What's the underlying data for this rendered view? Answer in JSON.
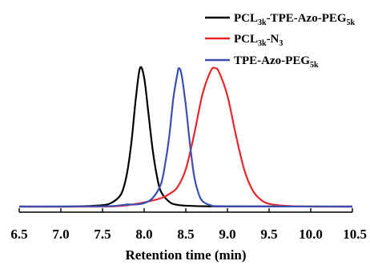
{
  "chart_data": {
    "type": "line",
    "title": "",
    "xlabel": "Retention time (min)",
    "ylabel": "",
    "xlim": [
      6.5,
      10.5
    ],
    "ylim": [
      0,
      1.1
    ],
    "x_ticks": [
      "6.5",
      "7.0",
      "7.5",
      "8.0",
      "8.5",
      "9.0",
      "9.5",
      "10.0",
      "10.5"
    ],
    "y_axis_visible": false,
    "grid": false,
    "legend_position": "top-right",
    "series": [
      {
        "name_parts": [
          {
            "text": "PCL",
            "sub": false
          },
          {
            "text": "3k",
            "sub": true
          },
          {
            "text": "-TPE-Azo-PEG",
            "sub": false
          },
          {
            "text": "5k",
            "sub": true
          }
        ],
        "color": "#000000",
        "points": [
          [
            6.5,
            0.0
          ],
          [
            7.0,
            0.0
          ],
          [
            7.3,
            0.003
          ],
          [
            7.5,
            0.01
          ],
          [
            7.6,
            0.025
          ],
          [
            7.7,
            0.07
          ],
          [
            7.75,
            0.13
          ],
          [
            7.8,
            0.26
          ],
          [
            7.85,
            0.48
          ],
          [
            7.9,
            0.78
          ],
          [
            7.95,
            1.0
          ],
          [
            8.0,
            0.93
          ],
          [
            8.05,
            0.68
          ],
          [
            8.1,
            0.42
          ],
          [
            8.15,
            0.23
          ],
          [
            8.2,
            0.11
          ],
          [
            8.3,
            0.035
          ],
          [
            8.4,
            0.012
          ],
          [
            8.6,
            0.004
          ],
          [
            9.0,
            0.001
          ],
          [
            10.5,
            0.0
          ]
        ]
      },
      {
        "name_parts": [
          {
            "text": "PCL",
            "sub": false
          },
          {
            "text": "3k",
            "sub": true
          },
          {
            "text": "-N",
            "sub": false
          },
          {
            "text": "3",
            "sub": true
          }
        ],
        "color": "#e8262a",
        "points": [
          [
            6.5,
            0.0
          ],
          [
            7.5,
            0.0
          ],
          [
            7.8,
            0.01
          ],
          [
            8.0,
            0.03
          ],
          [
            8.2,
            0.06
          ],
          [
            8.3,
            0.09
          ],
          [
            8.4,
            0.14
          ],
          [
            8.5,
            0.27
          ],
          [
            8.6,
            0.52
          ],
          [
            8.7,
            0.81
          ],
          [
            8.8,
            0.98
          ],
          [
            8.85,
            1.0
          ],
          [
            8.9,
            0.97
          ],
          [
            9.0,
            0.8
          ],
          [
            9.1,
            0.52
          ],
          [
            9.2,
            0.27
          ],
          [
            9.3,
            0.12
          ],
          [
            9.4,
            0.05
          ],
          [
            9.5,
            0.02
          ],
          [
            9.7,
            0.005
          ],
          [
            10.0,
            0.0
          ],
          [
            10.5,
            0.0
          ]
        ]
      },
      {
        "name_parts": [
          {
            "text": "TPE-Azo-PEG",
            "sub": false
          },
          {
            "text": "5k",
            "sub": true
          }
        ],
        "color": "#3b4fb2",
        "points": [
          [
            6.5,
            0.0
          ],
          [
            7.5,
            0.002
          ],
          [
            7.7,
            0.008
          ],
          [
            7.8,
            0.015
          ],
          [
            7.9,
            0.015
          ],
          [
            8.0,
            0.025
          ],
          [
            8.1,
            0.06
          ],
          [
            8.2,
            0.16
          ],
          [
            8.25,
            0.3
          ],
          [
            8.3,
            0.5
          ],
          [
            8.35,
            0.78
          ],
          [
            8.4,
            0.96
          ],
          [
            8.42,
            1.0
          ],
          [
            8.45,
            0.95
          ],
          [
            8.5,
            0.73
          ],
          [
            8.55,
            0.45
          ],
          [
            8.6,
            0.22
          ],
          [
            8.65,
            0.1
          ],
          [
            8.7,
            0.04
          ],
          [
            8.8,
            0.01
          ],
          [
            9.0,
            0.002
          ],
          [
            10.5,
            0.0
          ]
        ]
      }
    ]
  }
}
